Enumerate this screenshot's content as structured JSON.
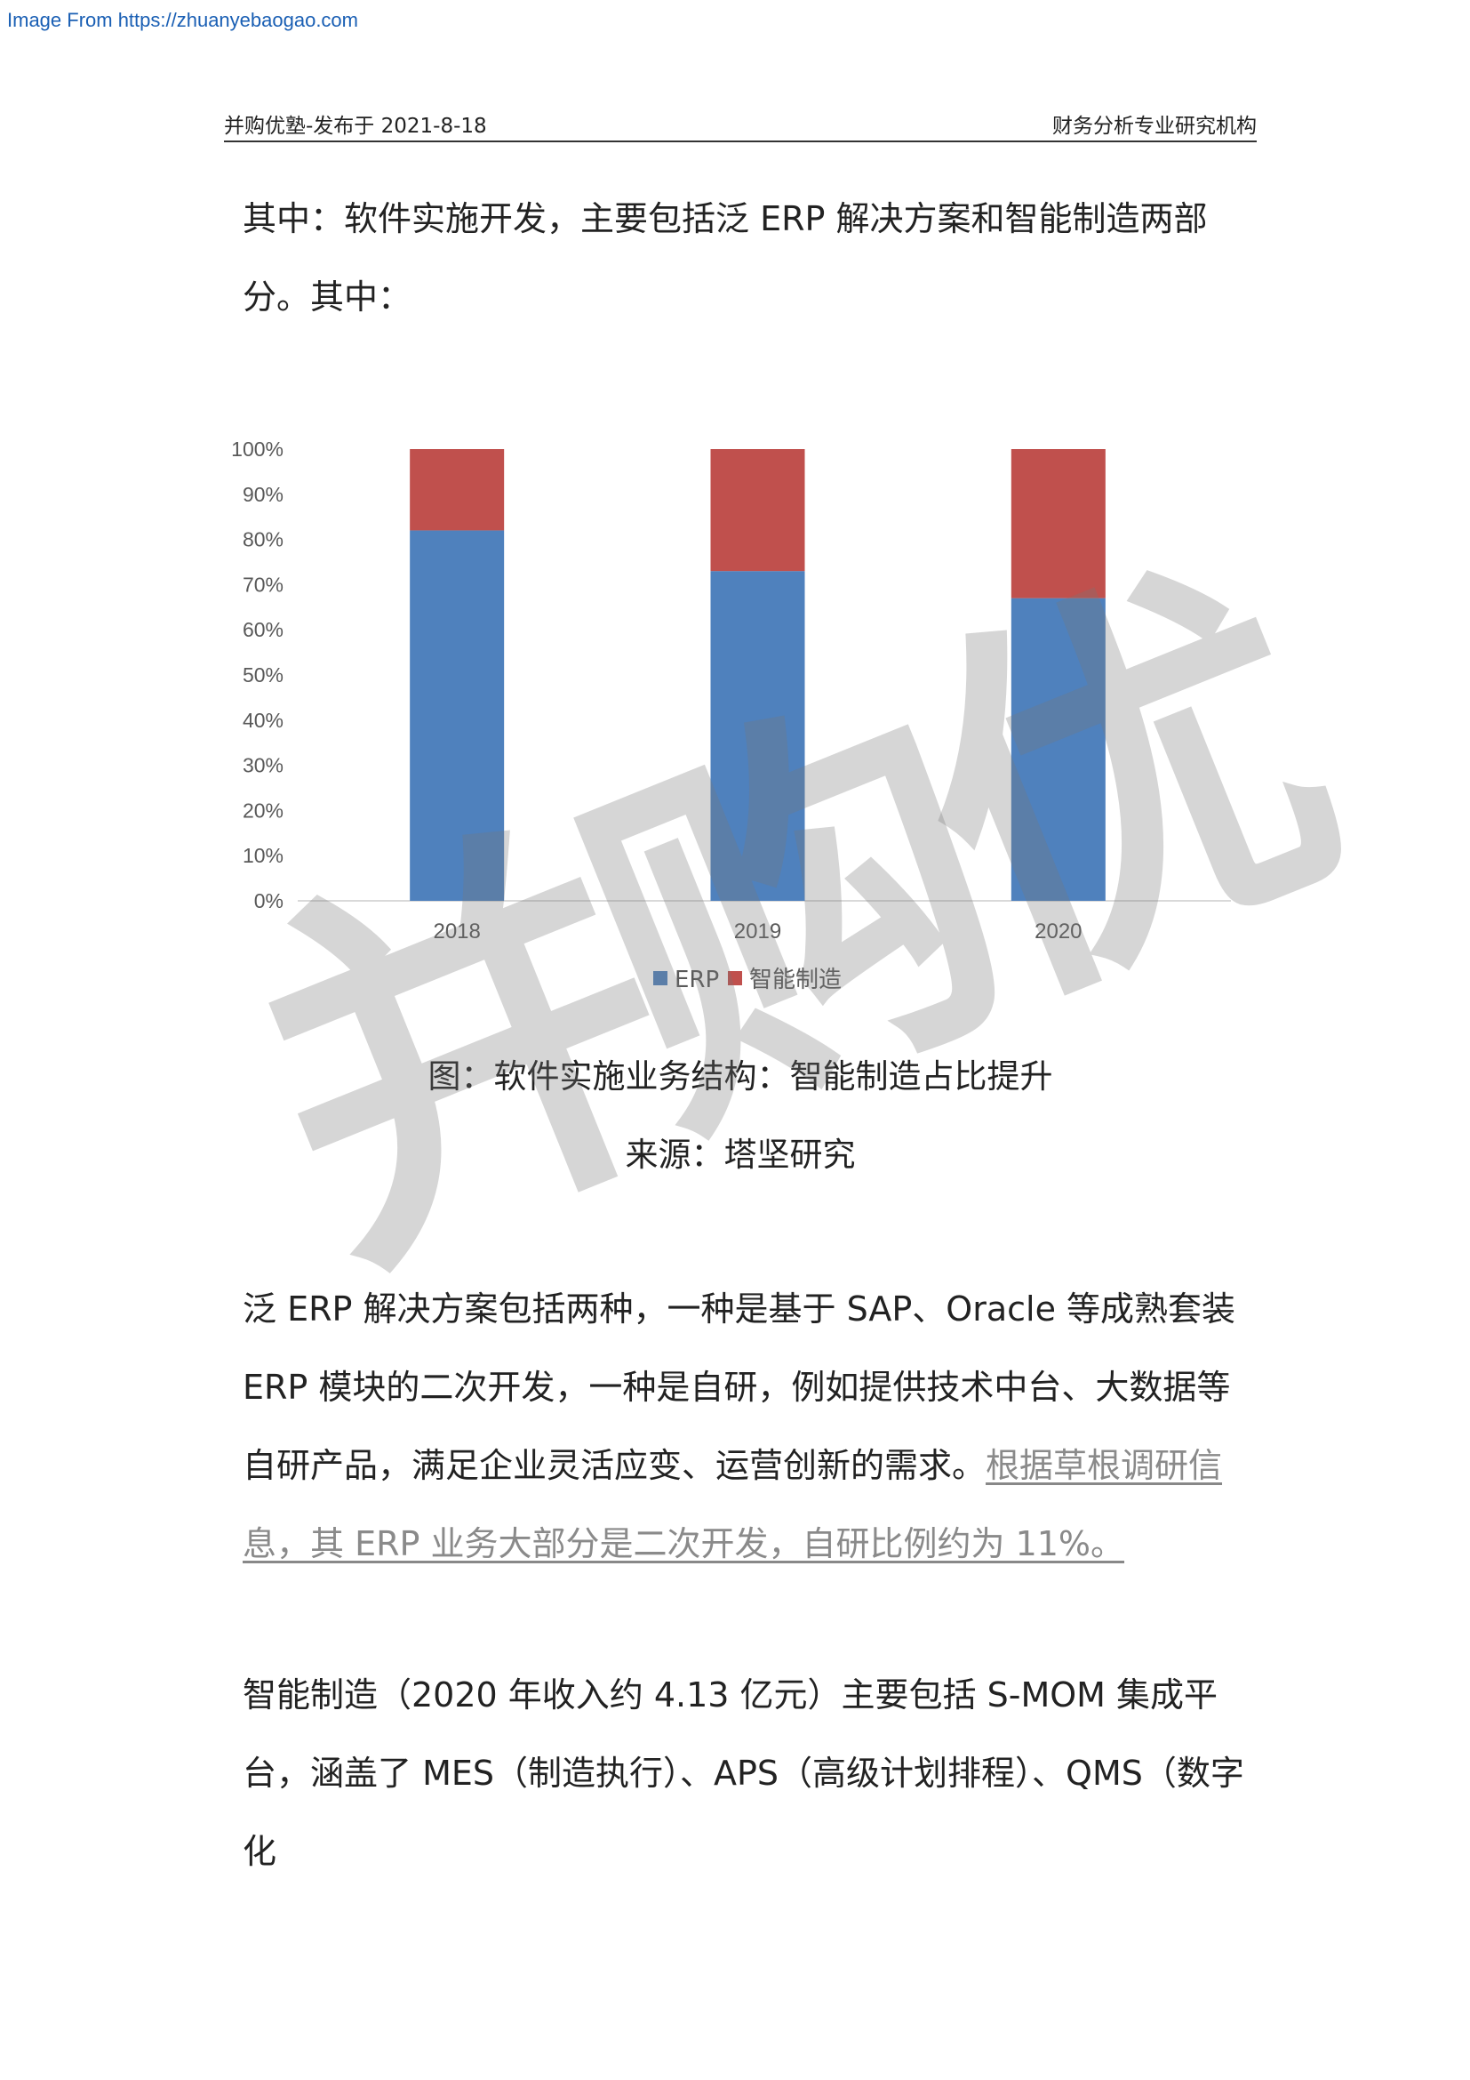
{
  "source_link": "Image From https://zhuanyebaogao.com",
  "header": {
    "left": "并购优塾-发布于 2021-8-18",
    "right": "财务分析专业研究机构"
  },
  "paragraphs": {
    "p1": "其中：软件实施开发，主要包括泛 ERP 解决方案和智能制造两部分。其中：",
    "p2_main": "泛 ERP 解决方案包括两种，一种是基于 SAP、Oracle 等成熟套装 ERP 模块的二次开发，一种是自研，例如提供技术中台、大数据等自研产品，满足企业灵活应变、运营创新的需求。",
    "p2_note": "根据草根调研信息，其 ERP 业务大部分是二次开发，自研比例约为 11%。",
    "p3": "智能制造（2020 年收入约 4.13 亿元）主要包括 S-MOM 集成平台，涵盖了 MES（制造执行）、APS（高级计划排程）、QMS（数字化"
  },
  "caption": {
    "title": "图：软件实施业务结构：智能制造占比提升",
    "source": "来源：塔坚研究"
  },
  "watermark": "并购优",
  "chart_data": {
    "type": "bar",
    "stacked": true,
    "categories": [
      "2018",
      "2019",
      "2020"
    ],
    "series": [
      {
        "name": "ERP",
        "values": [
          82,
          73,
          67
        ],
        "color": "#4f81bd"
      },
      {
        "name": "智能制造",
        "values": [
          18,
          27,
          33
        ],
        "color": "#c0504d"
      }
    ],
    "ylim": [
      0,
      100
    ],
    "yticks": [
      "0%",
      "10%",
      "20%",
      "30%",
      "40%",
      "50%",
      "60%",
      "70%",
      "80%",
      "90%",
      "100%"
    ],
    "grid": false,
    "legend": "bottom"
  }
}
